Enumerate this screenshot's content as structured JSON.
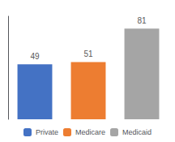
{
  "chart_data": {
    "type": "bar",
    "categories": [
      "Private",
      "Medicare",
      "Medicaid"
    ],
    "values": [
      49,
      51,
      81
    ],
    "colors": [
      "#4472c4",
      "#ed7d31",
      "#a5a5a5"
    ],
    "ylim": [
      0,
      92
    ],
    "data_labels": true,
    "tick_labels": false,
    "legend": "bottom",
    "grid": false
  }
}
